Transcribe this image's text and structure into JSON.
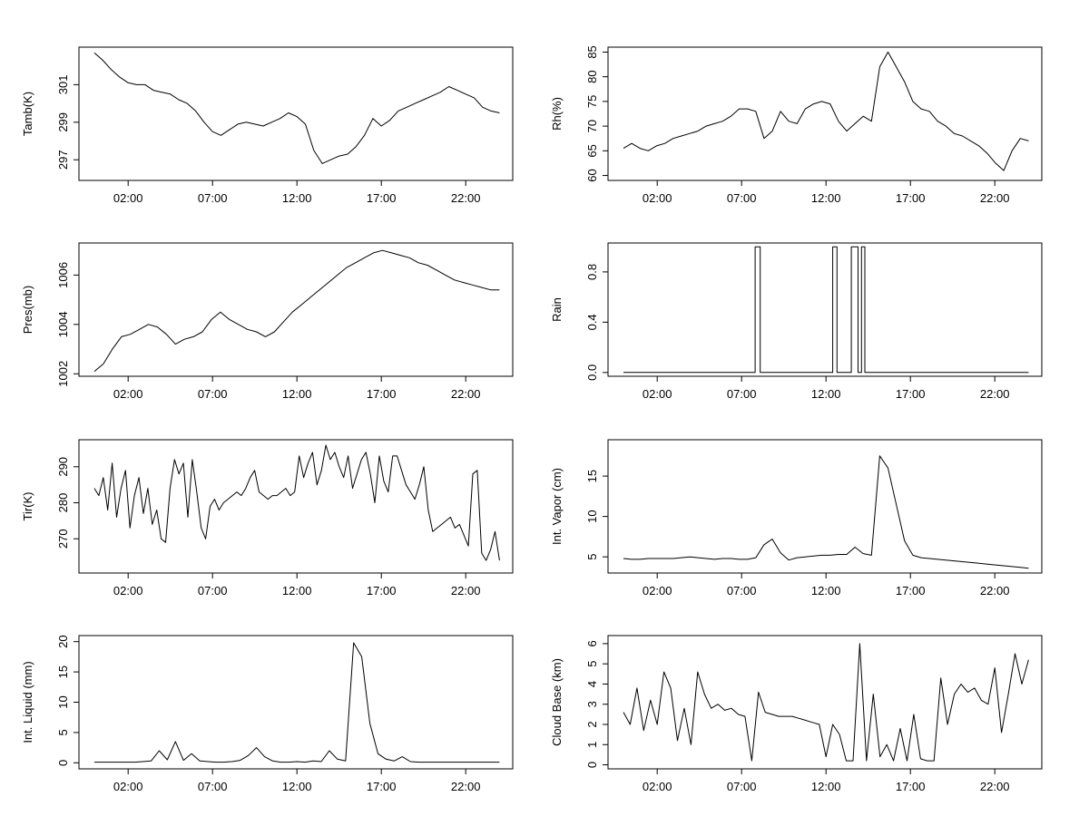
{
  "x_ticks": [
    "02:00",
    "07:00",
    "12:00",
    "17:00",
    "22:00"
  ],
  "chart_data": [
    {
      "type": "line",
      "ylabel": "Tamb(K)",
      "ylim": [
        295.9,
        303.0
      ],
      "yticks": [
        297,
        299,
        301
      ],
      "tick_labels": [
        "297",
        "299",
        "301"
      ],
      "series": [
        {
          "values": [
            302.7,
            302.3,
            301.8,
            301.4,
            301.1,
            301.0,
            301.0,
            300.7,
            300.6,
            300.5,
            300.2,
            300.0,
            299.6,
            299.0,
            298.5,
            298.3,
            298.6,
            298.9,
            299.0,
            298.9,
            298.8,
            299.0,
            299.2,
            299.5,
            299.3,
            298.9,
            297.5,
            296.8,
            297.0,
            297.2,
            297.3,
            297.7,
            298.3,
            299.2,
            298.8,
            299.1,
            299.6,
            299.8,
            300.0,
            300.2,
            300.4,
            300.6,
            300.9,
            300.7,
            300.5,
            300.3,
            299.8,
            299.6,
            299.5
          ]
        }
      ]
    },
    {
      "type": "line",
      "ylabel": "Rh(%)",
      "ylim": [
        59.0,
        86.0
      ],
      "yticks": [
        60,
        65,
        70,
        75,
        80,
        85
      ],
      "tick_labels": [
        "60",
        "65",
        "70",
        "75",
        "80",
        "85"
      ],
      "series": [
        {
          "values": [
            65.5,
            66.5,
            65.5,
            65.0,
            66.0,
            66.5,
            67.5,
            68.0,
            68.5,
            69.0,
            70.0,
            70.5,
            71.0,
            72.0,
            73.5,
            73.5,
            73.0,
            67.5,
            69.0,
            73.0,
            71.0,
            70.5,
            73.5,
            74.5,
            75.0,
            74.5,
            71.0,
            69.0,
            70.5,
            72.0,
            71.0,
            82.0,
            85.0,
            82.0,
            79.0,
            75.0,
            73.5,
            73.0,
            71.0,
            70.0,
            68.5,
            68.0,
            67.0,
            66.0,
            64.5,
            62.5,
            61.0,
            65.0,
            67.5,
            67.0
          ]
        }
      ]
    },
    {
      "type": "line",
      "ylabel": "Pres(mb)",
      "ylim": [
        1001.9,
        1007.3
      ],
      "yticks": [
        1002,
        1004,
        1006
      ],
      "tick_labels": [
        "1002",
        "1004",
        "1006"
      ],
      "series": [
        {
          "values": [
            1002.1,
            1002.4,
            1003.0,
            1003.5,
            1003.6,
            1003.8,
            1004.0,
            1003.9,
            1003.6,
            1003.2,
            1003.4,
            1003.5,
            1003.7,
            1004.2,
            1004.5,
            1004.2,
            1004.0,
            1003.8,
            1003.7,
            1003.5,
            1003.7,
            1004.1,
            1004.5,
            1004.8,
            1005.1,
            1005.4,
            1005.7,
            1006.0,
            1006.3,
            1006.5,
            1006.7,
            1006.9,
            1007.0,
            1006.9,
            1006.8,
            1006.7,
            1006.5,
            1006.4,
            1006.2,
            1006.0,
            1005.8,
            1005.7,
            1005.6,
            1005.5,
            1005.4,
            1005.4
          ]
        }
      ]
    },
    {
      "type": "line",
      "ylabel": "Rain",
      "ylim": [
        -0.03,
        1.03
      ],
      "yticks": [
        0.0,
        0.4,
        0.8
      ],
      "tick_labels": [
        "0.0",
        "0.4",
        "0.8"
      ],
      "steps": [
        [
          0.0,
          0
        ],
        [
          7.8,
          1
        ],
        [
          8.1,
          0
        ],
        [
          12.4,
          1
        ],
        [
          12.65,
          0
        ],
        [
          13.5,
          1
        ],
        [
          13.9,
          0
        ],
        [
          14.1,
          1
        ],
        [
          14.3,
          0
        ],
        [
          24.0,
          0
        ]
      ]
    },
    {
      "type": "line",
      "ylabel": "Tir(K)",
      "ylim": [
        260.5,
        297.5
      ],
      "yticks": [
        270,
        280,
        290
      ],
      "tick_labels": [
        "270",
        "280",
        "290"
      ],
      "series": [
        {
          "values": [
            284,
            282,
            287,
            278,
            291,
            276,
            284,
            289,
            273,
            282,
            287,
            277,
            284,
            274,
            278,
            270,
            269,
            284,
            292,
            288,
            291,
            276,
            292,
            283,
            273,
            270,
            279,
            281,
            278,
            280,
            281,
            282,
            283,
            282,
            284,
            287,
            289,
            283,
            282,
            281,
            282,
            282,
            283,
            284,
            282,
            283,
            293,
            287,
            291,
            294,
            285,
            289,
            296,
            292,
            294,
            290,
            287,
            293,
            284,
            288,
            292,
            294,
            288,
            280,
            293,
            286,
            283,
            293,
            293,
            289,
            285,
            283,
            281,
            285,
            290,
            278,
            272,
            273,
            274,
            275,
            276,
            273,
            274,
            271,
            268,
            288,
            289,
            266,
            264,
            267,
            272,
            264
          ]
        }
      ]
    },
    {
      "type": "line",
      "ylabel": "Int. Vapor (cm)",
      "ylim": [
        3.0,
        19.5
      ],
      "yticks": [
        5,
        10,
        15
      ],
      "tick_labels": [
        "5",
        "10",
        "15"
      ],
      "series": [
        {
          "values": [
            4.8,
            4.7,
            4.7,
            4.8,
            4.8,
            4.8,
            4.8,
            4.9,
            5.0,
            4.9,
            4.8,
            4.7,
            4.8,
            4.8,
            4.7,
            4.7,
            4.9,
            6.5,
            7.2,
            5.5,
            4.6,
            4.9,
            5.0,
            5.1,
            5.2,
            5.2,
            5.3,
            5.3,
            6.2,
            5.4,
            5.2,
            17.5,
            16.0,
            11.5,
            7.0,
            5.2,
            4.9,
            4.8,
            4.7,
            4.6,
            4.5,
            4.4,
            4.3,
            4.2,
            4.1,
            4.0,
            3.9,
            3.8,
            3.7,
            3.6
          ]
        }
      ]
    },
    {
      "type": "line",
      "ylabel": "Int. Liquid (mm)",
      "ylim": [
        -1.0,
        21.0
      ],
      "yticks": [
        0,
        5,
        10,
        15,
        20
      ],
      "tick_labels": [
        "0",
        "5",
        "10",
        "15",
        "20"
      ],
      "series": [
        {
          "values": [
            0.1,
            0.1,
            0.1,
            0.1,
            0.1,
            0.1,
            0.2,
            0.3,
            2.0,
            0.5,
            3.5,
            0.4,
            1.5,
            0.3,
            0.2,
            0.1,
            0.1,
            0.2,
            0.4,
            1.2,
            2.5,
            1.0,
            0.3,
            0.1,
            0.1,
            0.2,
            0.1,
            0.3,
            0.2,
            2.0,
            0.6,
            0.3,
            19.8,
            17.5,
            6.5,
            1.5,
            0.6,
            0.3,
            1.0,
            0.2,
            0.1,
            0.1,
            0.1,
            0.1,
            0.1,
            0.1,
            0.1,
            0.1,
            0.1,
            0.1,
            0.1
          ]
        }
      ]
    },
    {
      "type": "line",
      "ylabel": "Cloud Base (km)",
      "ylim": [
        -0.2,
        6.4
      ],
      "yticks": [
        0,
        1,
        2,
        3,
        4,
        5,
        6
      ],
      "tick_labels": [
        "0",
        "1",
        "2",
        "3",
        "4",
        "5",
        "6"
      ],
      "series": [
        {
          "values": [
            2.6,
            2.0,
            3.8,
            1.7,
            3.2,
            2.0,
            4.6,
            3.8,
            1.2,
            2.8,
            1.0,
            4.6,
            3.5,
            2.8,
            3.0,
            2.7,
            2.8,
            2.5,
            2.4,
            0.2,
            3.6,
            2.6,
            2.5,
            2.4,
            2.4,
            2.4,
            2.3,
            2.2,
            2.1,
            2.0,
            0.4,
            2.0,
            1.5,
            0.2,
            0.2,
            6.0,
            0.2,
            3.5,
            0.4,
            1.0,
            0.2,
            1.8,
            0.2,
            2.5,
            0.3,
            0.2,
            0.2,
            4.3,
            2.0,
            3.5,
            4.0,
            3.6,
            3.8,
            3.2,
            3.0,
            4.8,
            1.6,
            3.5,
            5.5,
            4.0,
            5.2
          ]
        }
      ]
    }
  ]
}
